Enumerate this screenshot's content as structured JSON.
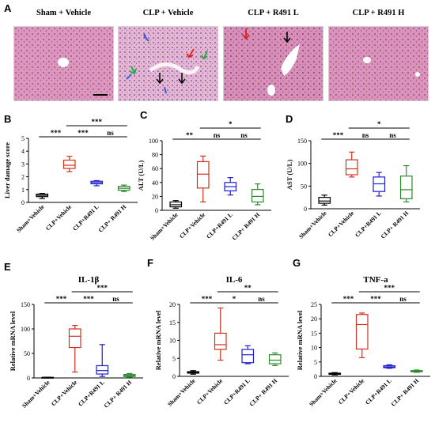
{
  "panels": {
    "A": "A",
    "B": "B",
    "C": "C",
    "D": "D",
    "E": "E",
    "F": "F",
    "G": "G"
  },
  "histology": {
    "titles": [
      "Sham + Vehicle",
      "CLP + Vehicle",
      "CLP + R491 L",
      "CLP + R491 H"
    ],
    "tissue_color": "#d98fb4",
    "nuclei_color": "#7a3f9a",
    "arrow_colors": {
      "blue": "#3a5bd9",
      "red": "#e02020",
      "green": "#2ea84a",
      "black": "#000000"
    }
  },
  "chart_data": [
    {
      "id": "B",
      "type": "box",
      "title": "",
      "ylabel": "Liver damage score",
      "ylim": [
        0,
        5
      ],
      "yticks": [
        0,
        1,
        2,
        3,
        4,
        5
      ],
      "categories": [
        "Sham+Vehicle",
        "CLP+Vehicle",
        "CLP+R491 L",
        "CLP+ R491 H"
      ],
      "colors": [
        "#000000",
        "#d0321d",
        "#1f1fd0",
        "#2b8a2b"
      ],
      "boxes": [
        {
          "min": 0.3,
          "q1": 0.45,
          "median": 0.55,
          "q3": 0.65,
          "max": 0.7
        },
        {
          "min": 2.4,
          "q1": 2.65,
          "median": 2.9,
          "q3": 3.3,
          "max": 3.6
        },
        {
          "min": 1.3,
          "q1": 1.45,
          "median": 1.55,
          "q3": 1.65,
          "max": 1.7
        },
        {
          "min": 0.85,
          "q1": 0.95,
          "median": 1.1,
          "q3": 1.25,
          "max": 1.35
        }
      ],
      "comparisons": [
        {
          "from": 0,
          "to": 1,
          "label": "***"
        },
        {
          "from": 1,
          "to": 2,
          "label": "***"
        },
        {
          "from": 2,
          "to": 3,
          "label": "ns"
        },
        {
          "from": 1,
          "to": 3,
          "label": "***"
        }
      ]
    },
    {
      "id": "C",
      "type": "box",
      "title": "",
      "ylabel": "ALT (U/L)",
      "ylim": [
        0,
        100
      ],
      "yticks": [
        0,
        20,
        40,
        60,
        80,
        100
      ],
      "categories": [
        "Sham+Vehicle",
        "CLP+Vehicle",
        "CLP+R491 L",
        "CLP+ R491 H"
      ],
      "colors": [
        "#000000",
        "#d0321d",
        "#1f1fd0",
        "#2b8a2b"
      ],
      "boxes": [
        {
          "min": 3,
          "q1": 5,
          "median": 8,
          "q3": 12,
          "max": 14
        },
        {
          "min": 12,
          "q1": 32,
          "median": 52,
          "q3": 70,
          "max": 78
        },
        {
          "min": 22,
          "q1": 28,
          "median": 34,
          "q3": 40,
          "max": 47
        },
        {
          "min": 8,
          "q1": 12,
          "median": 20,
          "q3": 30,
          "max": 38
        }
      ],
      "comparisons": [
        {
          "from": 0,
          "to": 1,
          "label": "**"
        },
        {
          "from": 1,
          "to": 2,
          "label": "ns"
        },
        {
          "from": 2,
          "to": 3,
          "label": "ns"
        },
        {
          "from": 1,
          "to": 3,
          "label": "*"
        }
      ]
    },
    {
      "id": "D",
      "type": "box",
      "title": "",
      "ylabel": "AST (U/L)",
      "ylim": [
        0,
        150
      ],
      "yticks": [
        0,
        50,
        100,
        150
      ],
      "categories": [
        "Sham+Vehicle",
        "CLP+Vehicle",
        "CLP+R491 L",
        "CLP+ R491 H"
      ],
      "colors": [
        "#000000",
        "#d0321d",
        "#1f1fd0",
        "#2b8a2b"
      ],
      "boxes": [
        {
          "min": 8,
          "q1": 12,
          "median": 17,
          "q3": 25,
          "max": 30
        },
        {
          "min": 70,
          "q1": 75,
          "median": 88,
          "q3": 108,
          "max": 125
        },
        {
          "min": 28,
          "q1": 38,
          "median": 55,
          "q3": 70,
          "max": 80
        },
        {
          "min": 15,
          "q1": 22,
          "median": 42,
          "q3": 72,
          "max": 95
        }
      ],
      "comparisons": [
        {
          "from": 0,
          "to": 1,
          "label": "***"
        },
        {
          "from": 1,
          "to": 2,
          "label": "ns"
        },
        {
          "from": 2,
          "to": 3,
          "label": "ns"
        },
        {
          "from": 1,
          "to": 3,
          "label": "*"
        }
      ]
    },
    {
      "id": "E",
      "type": "box",
      "title": "IL-1β",
      "ylabel": "Relative mRNA level",
      "ylim": [
        0,
        150
      ],
      "yticks": [
        0,
        50,
        100,
        150
      ],
      "categories": [
        "Sham+Vehicle",
        "CLP+Vehicle",
        "CLP+R491 L",
        "CLP+ R491 H"
      ],
      "colors": [
        "#000000",
        "#d0321d",
        "#1f1fd0",
        "#2b8a2b"
      ],
      "boxes": [
        {
          "min": 0.5,
          "q1": 0.8,
          "median": 1,
          "q3": 1.2,
          "max": 1.5
        },
        {
          "min": 12,
          "q1": 62,
          "median": 85,
          "q3": 100,
          "max": 107
        },
        {
          "min": 3,
          "q1": 8,
          "median": 15,
          "q3": 25,
          "max": 68
        },
        {
          "min": 2,
          "q1": 3,
          "median": 5,
          "q3": 7,
          "max": 9
        }
      ],
      "comparisons": [
        {
          "from": 0,
          "to": 1,
          "label": "***"
        },
        {
          "from": 1,
          "to": 2,
          "label": "***"
        },
        {
          "from": 2,
          "to": 3,
          "label": "ns"
        },
        {
          "from": 1,
          "to": 3,
          "label": "***"
        }
      ]
    },
    {
      "id": "F",
      "type": "box",
      "title": "IL-6",
      "ylabel": "Relative mRNA level",
      "ylim": [
        0,
        20
      ],
      "yticks": [
        0,
        5,
        10,
        15,
        20
      ],
      "categories": [
        "Sham+Vehicle",
        "CLP+Vehicle",
        "CLP+R491 L",
        "CLP+ R491 H"
      ],
      "colors": [
        "#000000",
        "#d0321d",
        "#1f1fd0",
        "#2b8a2b"
      ],
      "boxes": [
        {
          "min": 0.6,
          "q1": 0.9,
          "median": 1.1,
          "q3": 1.3,
          "max": 1.6
        },
        {
          "min": 4.5,
          "q1": 7.5,
          "median": 8.8,
          "q3": 12,
          "max": 19
        },
        {
          "min": 3.5,
          "q1": 3.8,
          "median": 6,
          "q3": 7.5,
          "max": 8.5
        },
        {
          "min": 3,
          "q1": 3.5,
          "median": 4.5,
          "q3": 6,
          "max": 6.5
        }
      ],
      "comparisons": [
        {
          "from": 0,
          "to": 1,
          "label": "***"
        },
        {
          "from": 1,
          "to": 2,
          "label": "*"
        },
        {
          "from": 2,
          "to": 3,
          "label": "ns"
        },
        {
          "from": 1,
          "to": 3,
          "label": "**"
        }
      ]
    },
    {
      "id": "G",
      "type": "box",
      "title": "TNF-a",
      "ylabel": "Relative mRNA level",
      "ylim": [
        0,
        25
      ],
      "yticks": [
        0,
        5,
        10,
        15,
        20,
        25
      ],
      "categories": [
        "Sham+Vehicle",
        "CLP+Vehicle",
        "CLP+R491 L",
        "CLP+ R491 H"
      ],
      "colors": [
        "#000000",
        "#d0321d",
        "#1f1fd0",
        "#2b8a2b"
      ],
      "boxes": [
        {
          "min": 0.5,
          "q1": 0.7,
          "median": 0.9,
          "q3": 1.1,
          "max": 1.3
        },
        {
          "min": 6.5,
          "q1": 9.5,
          "median": 18,
          "q3": 21.5,
          "max": 22
        },
        {
          "min": 2.8,
          "q1": 3.0,
          "median": 3.3,
          "q3": 3.7,
          "max": 4
        },
        {
          "min": 1.4,
          "q1": 1.6,
          "median": 1.8,
          "q3": 2,
          "max": 2.2
        }
      ],
      "comparisons": [
        {
          "from": 0,
          "to": 1,
          "label": "***"
        },
        {
          "from": 1,
          "to": 2,
          "label": "***"
        },
        {
          "from": 2,
          "to": 3,
          "label": "ns"
        },
        {
          "from": 1,
          "to": 3,
          "label": "***"
        }
      ]
    }
  ]
}
